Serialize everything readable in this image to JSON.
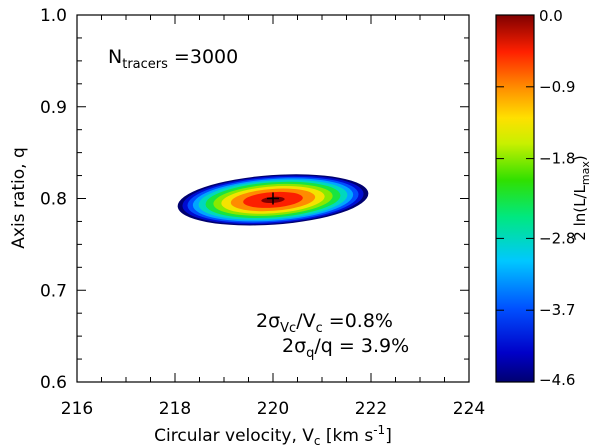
{
  "chart_data": {
    "type": "heatmap",
    "xlabel": {
      "main": "Circular velocity, V",
      "sub": "c",
      "units_pre": " [km s",
      "units_sup": "-1",
      "units_post": "]"
    },
    "ylabel": "Axis ratio, q",
    "xlim": [
      216,
      224
    ],
    "ylim": [
      0.6,
      1.0
    ],
    "xticks": [
      216,
      218,
      220,
      222,
      224
    ],
    "yticks": [
      0.6,
      0.7,
      0.8,
      0.9,
      1.0
    ],
    "x_tick_labels": [
      "216",
      "218",
      "220",
      "222",
      "224"
    ],
    "y_tick_labels": [
      "0.6",
      "0.7",
      "0.8",
      "0.9",
      "1.0"
    ],
    "minor_ticks_per_major": 4,
    "peak": {
      "x": 220.0,
      "y": 0.8,
      "marker": "+"
    },
    "likelihood_region": {
      "center_x": 220.0,
      "center_y": 0.7985,
      "semi_axis_x": 1.95,
      "semi_axis_y": 0.027,
      "tilt_deg": 4,
      "levels": [
        0.0,
        -0.45,
        -0.9,
        -1.35,
        -1.8,
        -2.3,
        -2.8,
        -3.25,
        -3.7,
        -4.15,
        -4.6
      ]
    },
    "annotations": {
      "ntracers": {
        "pre": "N",
        "sub": "tracers",
        "post": " =3000"
      },
      "sigma_vc": {
        "pre": "2σ",
        "sub": "Vc",
        "post": "/V",
        "sub2": "c",
        "post2": " =0.8%"
      },
      "sigma_q": {
        "pre": "2σ",
        "sub": "q",
        "post": "/q = 3.9%"
      }
    },
    "colorbar": {
      "label": {
        "pre": "2 ln(L/L",
        "sub": "max",
        "post": ")"
      },
      "min": -4.6,
      "max": 0.0,
      "ticks": [
        0.0,
        -0.9,
        -1.8,
        -2.8,
        -3.7,
        -4.6
      ],
      "tick_labels": [
        "0.0",
        "−0.9",
        "−1.8",
        "−2.8",
        "−3.7",
        "−4.6"
      ],
      "colormap": "rainbow"
    }
  }
}
